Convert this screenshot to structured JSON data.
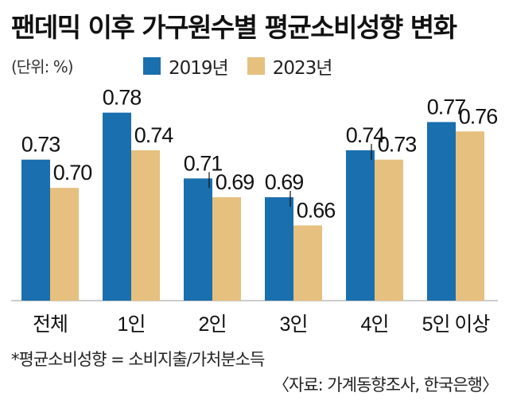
{
  "chart_data": {
    "type": "bar",
    "title": "팬데믹 이후 가구원수별 평균소비성향 변화",
    "unit_label": "(단위: %)",
    "categories": [
      "전체",
      "1인",
      "2인",
      "3인",
      "4인",
      "5인 이상"
    ],
    "series": [
      {
        "name": "2019년",
        "values": [
          0.73,
          0.78,
          0.71,
          0.69,
          0.74,
          0.77
        ],
        "color": "#1a6fae"
      },
      {
        "name": "2023년",
        "values": [
          0.7,
          0.74,
          0.69,
          0.66,
          0.73,
          0.76
        ],
        "color": "#e6c07e"
      }
    ],
    "value_labels": [
      [
        "0.73",
        "0.78",
        "0.71",
        "0.69",
        "0.74",
        "0.77"
      ],
      [
        "0.70",
        "0.74",
        "0.69",
        "0.66",
        "0.73",
        "0.76"
      ]
    ],
    "ylim": [
      0.58,
      0.8
    ],
    "grid": false,
    "legend_position": "top"
  },
  "footnote": "*평균소비성향 = 소비지출/가처분소득",
  "source": "〈자료: 가계동향조사, 한국은행〉"
}
